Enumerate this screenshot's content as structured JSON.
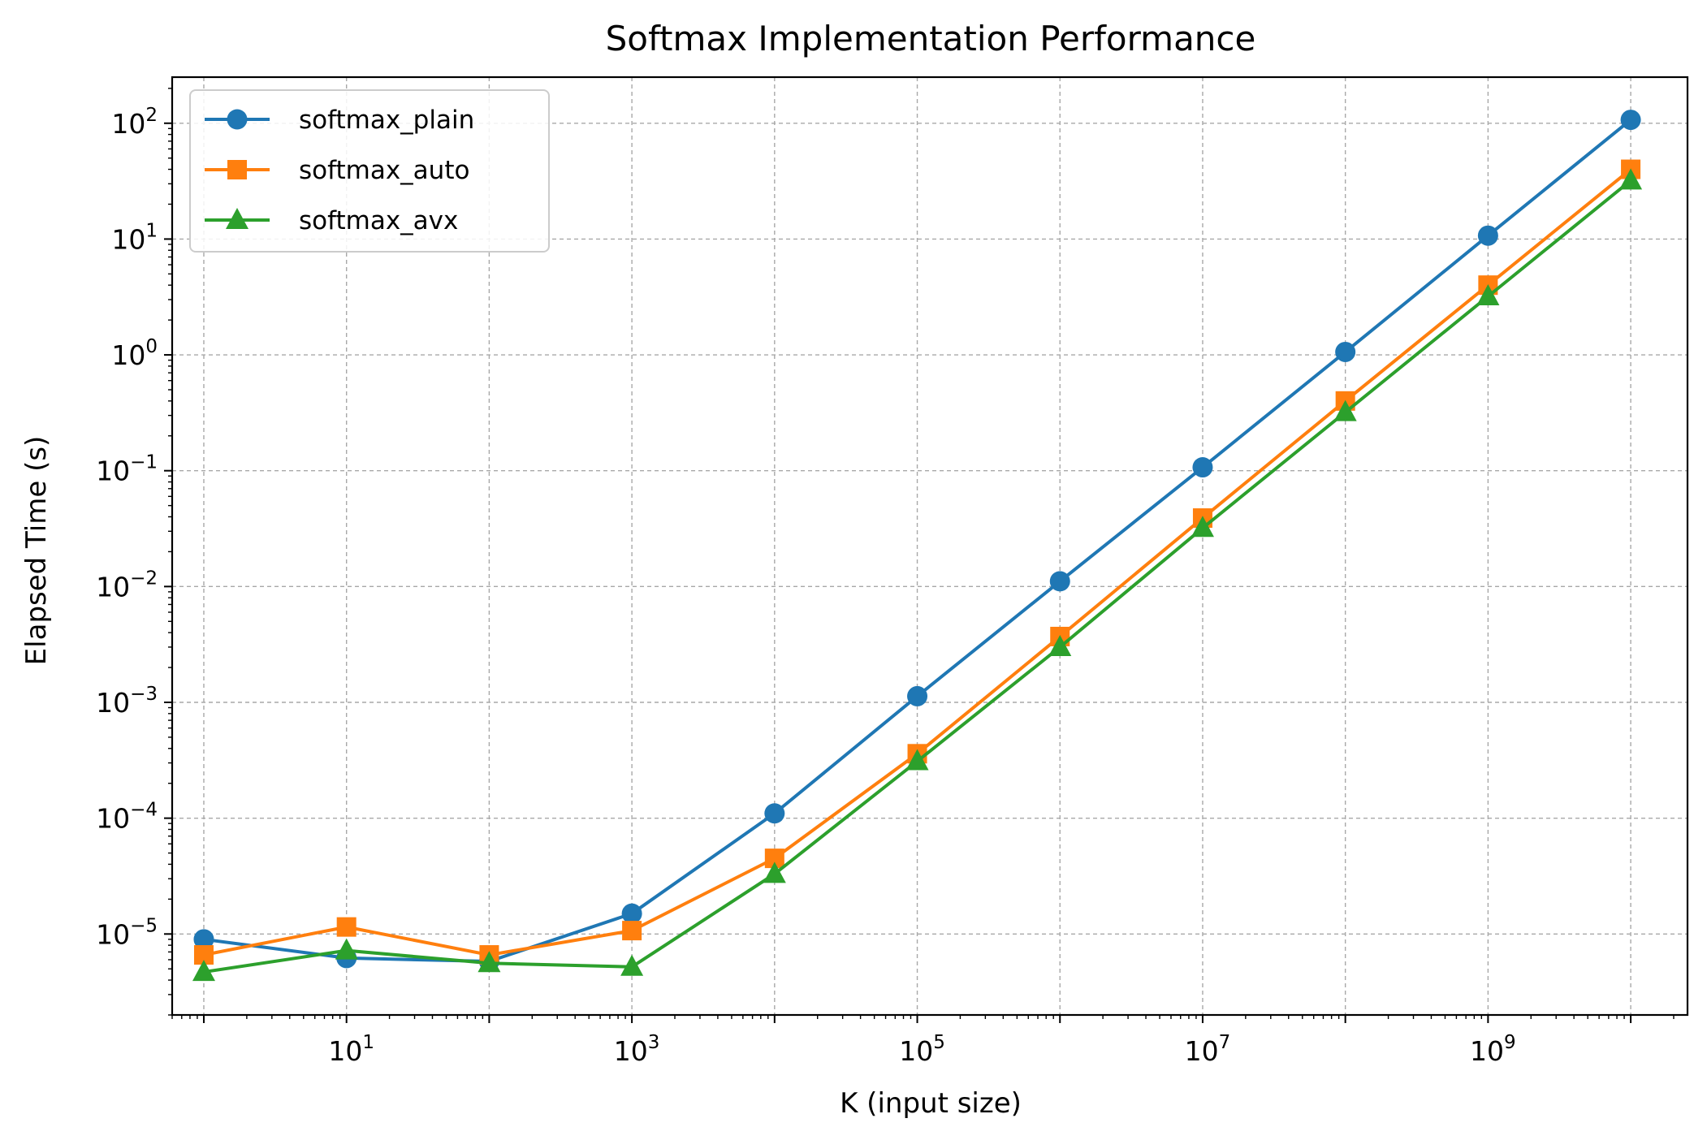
{
  "chart_data": {
    "type": "line",
    "title": "Softmax Implementation Performance",
    "xlabel": "K (input size)",
    "ylabel": "Elapsed Time (s)",
    "xscale": "log",
    "yscale": "log",
    "xlim": [
      0.6,
      25000000000
    ],
    "ylim": [
      2e-06,
      250
    ],
    "grid": true,
    "legend_position": "upper-left",
    "x": [
      1,
      10,
      100,
      1000,
      10000,
      100000,
      1000000,
      10000000,
      100000000,
      1000000000,
      10000000000
    ],
    "series": [
      {
        "name": "softmax_plain",
        "color": "#1f77b4",
        "marker": "circle",
        "values": [
          9e-06,
          6.2e-06,
          5.8e-06,
          1.5e-05,
          0.00011,
          0.00113,
          0.0111,
          0.107,
          1.06,
          10.7,
          107
        ]
      },
      {
        "name": "softmax_auto",
        "color": "#ff7f0e",
        "marker": "square",
        "values": [
          6.6e-06,
          1.15e-05,
          6.6e-06,
          1.07e-05,
          4.5e-05,
          0.00036,
          0.0037,
          0.039,
          0.4,
          4.0,
          40
        ]
      },
      {
        "name": "softmax_avx",
        "color": "#2ca02c",
        "marker": "triangle",
        "values": [
          4.7e-06,
          7.2e-06,
          5.6e-06,
          5.2e-06,
          3.3e-05,
          0.00031,
          0.003,
          0.032,
          0.32,
          3.2,
          32
        ]
      }
    ],
    "x_ticks": [
      {
        "base": "10",
        "exp": "1",
        "value": 10
      },
      {
        "base": "10",
        "exp": "3",
        "value": 1000
      },
      {
        "base": "10",
        "exp": "5",
        "value": 100000
      },
      {
        "base": "10",
        "exp": "7",
        "value": 10000000
      },
      {
        "base": "10",
        "exp": "9",
        "value": 1000000000
      }
    ],
    "y_ticks": [
      {
        "base": "10",
        "exp": "−5",
        "value": 1e-05
      },
      {
        "base": "10",
        "exp": "−4",
        "value": 0.0001
      },
      {
        "base": "10",
        "exp": "−3",
        "value": 0.001
      },
      {
        "base": "10",
        "exp": "−2",
        "value": 0.01
      },
      {
        "base": "10",
        "exp": "−1",
        "value": 0.1
      },
      {
        "base": "10",
        "exp": "0",
        "value": 1
      },
      {
        "base": "10",
        "exp": "1",
        "value": 10
      },
      {
        "base": "10",
        "exp": "2",
        "value": 100
      }
    ]
  }
}
